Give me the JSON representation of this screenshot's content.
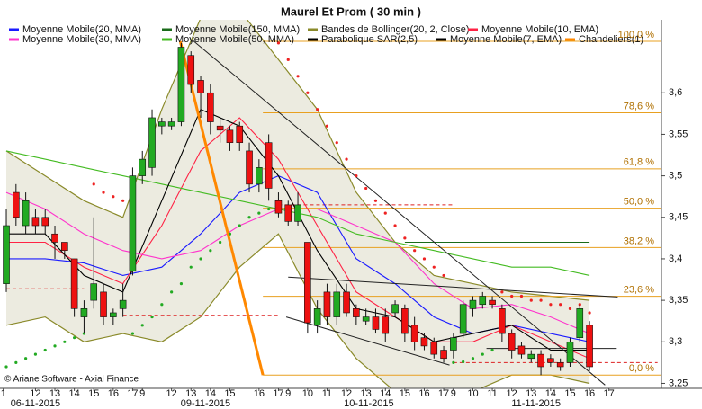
{
  "chart_data": {
    "type": "candlestick",
    "title": "Maurel Et Prom  ( 30 min )",
    "copyright": "© Ariane Software - Axial Finance",
    "xlim": [
      -0.65,
      67.4
    ],
    "ylim": [
      3.244,
      3.688
    ],
    "yticks": [
      {
        "value": 3.25,
        "label": "3,25"
      },
      {
        "value": 3.3,
        "label": "3,3"
      },
      {
        "value": 3.35,
        "label": "3,35"
      },
      {
        "value": 3.4,
        "label": "3,4"
      },
      {
        "value": 3.45,
        "label": "3,45"
      },
      {
        "value": 3.5,
        "label": "3,5"
      },
      {
        "value": 3.55,
        "label": "3,55"
      },
      {
        "value": 3.6,
        "label": "3,6"
      }
    ],
    "xticks": [
      {
        "value": -0.3,
        "label": "1"
      },
      {
        "value": 3,
        "label": "12"
      },
      {
        "value": 5,
        "label": "13"
      },
      {
        "value": 7,
        "label": "14"
      },
      {
        "value": 9,
        "label": "15"
      },
      {
        "value": 11,
        "label": "16"
      },
      {
        "value": 13,
        "label": "17"
      },
      {
        "value": 14,
        "label": "9"
      },
      {
        "value": 17,
        "label": "12"
      },
      {
        "value": 19,
        "label": "13"
      },
      {
        "value": 21,
        "label": "14"
      },
      {
        "value": 23,
        "label": "15"
      },
      {
        "value": 26,
        "label": "16"
      },
      {
        "value": 28,
        "label": "17"
      },
      {
        "value": 29,
        "label": "9"
      },
      {
        "value": 31,
        "label": "10"
      },
      {
        "value": 33,
        "label": "11"
      },
      {
        "value": 35,
        "label": "12"
      },
      {
        "value": 37,
        "label": "13"
      },
      {
        "value": 39,
        "label": "14"
      },
      {
        "value": 41,
        "label": "15"
      },
      {
        "value": 43,
        "label": "16"
      },
      {
        "value": 45,
        "label": "17"
      },
      {
        "value": 46,
        "label": "9"
      },
      {
        "value": 48,
        "label": "10"
      },
      {
        "value": 50,
        "label": "11"
      },
      {
        "value": 52,
        "label": "12"
      },
      {
        "value": 54,
        "label": "13"
      },
      {
        "value": 56,
        "label": "14"
      },
      {
        "value": 58,
        "label": "15"
      },
      {
        "value": 60,
        "label": "16"
      },
      {
        "value": 62,
        "label": "17"
      }
    ],
    "date_ticks": [
      {
        "value": 3,
        "label": "06-11-2015"
      },
      {
        "value": 20.5,
        "label": "09-11-2015"
      },
      {
        "value": 37.3,
        "label": "10-11-2015"
      },
      {
        "value": 54.5,
        "label": "11-11-2015"
      }
    ],
    "series": [
      {
        "name": "Moyenne Mobile(20, MMA)",
        "color": "#1a1aff",
        "kind": "line",
        "x": [
          0,
          4,
          8,
          12,
          16,
          20,
          24,
          28,
          32,
          36,
          40,
          44,
          48,
          52,
          56,
          60
        ],
        "values": [
          3.4,
          3.4,
          3.395,
          3.38,
          3.39,
          3.43,
          3.48,
          3.5,
          3.48,
          3.4,
          3.37,
          3.33,
          3.31,
          3.32,
          3.31,
          3.3
        ]
      },
      {
        "name": "Moyenne Mobile(150, MMA)",
        "color": "#1a6b1a",
        "kind": "line",
        "x": [
          41,
          60
        ],
        "values": [
          3.42,
          3.42
        ]
      },
      {
        "name": "Bandes de Bollinger(20, 2, Close)",
        "color": "#8a8a2a",
        "kind": "band",
        "fill": "#ecebe0",
        "x": [
          0,
          4,
          8,
          12,
          16,
          20,
          24,
          28,
          32,
          36,
          40,
          44,
          48,
          52,
          56,
          60
        ],
        "upper": [
          3.53,
          3.5,
          3.47,
          3.45,
          3.58,
          3.69,
          3.7,
          3.64,
          3.58,
          3.48,
          3.42,
          3.38,
          3.37,
          3.36,
          3.355,
          3.35
        ],
        "lower": [
          3.32,
          3.33,
          3.3,
          3.31,
          3.3,
          3.33,
          3.39,
          3.43,
          3.34,
          3.28,
          3.24,
          3.23,
          3.24,
          3.26,
          3.26,
          3.25
        ]
      },
      {
        "name": "Moyenne Mobile(10, EMA)",
        "color": "#ff2244",
        "kind": "line",
        "x": [
          0,
          4,
          8,
          12,
          16,
          20,
          24,
          28,
          32,
          36,
          40,
          44,
          48,
          52,
          56,
          60
        ],
        "values": [
          3.42,
          3.42,
          3.39,
          3.37,
          3.44,
          3.53,
          3.57,
          3.52,
          3.44,
          3.36,
          3.33,
          3.3,
          3.3,
          3.32,
          3.3,
          3.28
        ]
      },
      {
        "name": "Moyenne Mobile(30, MMA)",
        "color": "#ff33cc",
        "kind": "line",
        "x": [
          0,
          4,
          8,
          12,
          16,
          20,
          24,
          28,
          32,
          36,
          40,
          44,
          48,
          52,
          56,
          60
        ],
        "values": [
          3.48,
          3.46,
          3.43,
          3.41,
          3.4,
          3.41,
          3.44,
          3.46,
          3.46,
          3.44,
          3.42,
          3.37,
          3.34,
          3.345,
          3.33,
          3.31
        ]
      },
      {
        "name": "Moyenne Mobile(50, MMA)",
        "color": "#44bb22",
        "kind": "line",
        "x": [
          0,
          4,
          8,
          12,
          16,
          20,
          24,
          28,
          32,
          36,
          40,
          44,
          48,
          52,
          56,
          60
        ],
        "values": [
          3.53,
          3.52,
          3.51,
          3.5,
          3.49,
          3.48,
          3.47,
          3.46,
          3.45,
          3.43,
          3.42,
          3.41,
          3.4,
          3.39,
          3.39,
          3.38
        ]
      },
      {
        "name": "Parabolique SAR(2,5)",
        "color": "#000000",
        "kind": "sar",
        "up_color": "#22aa22",
        "down_color": "#ee2222",
        "values": [
          3.27,
          3.275,
          3.28,
          3.285,
          3.29,
          3.295,
          3.3,
          3.305,
          3.31,
          3.49,
          3.48,
          3.475,
          3.47,
          3.31,
          3.32,
          3.33,
          3.345,
          3.36,
          3.37,
          3.39,
          3.4,
          3.41,
          3.42,
          3.43,
          3.44,
          3.45,
          3.455,
          3.46,
          3.66,
          3.64,
          3.62,
          3.6,
          3.58,
          3.56,
          3.54,
          3.52,
          3.5,
          3.485,
          3.47,
          3.455,
          3.44,
          3.425,
          3.41,
          3.4,
          3.39,
          3.38,
          3.275,
          3.276,
          3.28,
          3.285,
          3.29,
          3.36,
          3.355,
          3.355,
          3.35,
          3.35,
          3.345,
          3.345,
          3.34,
          3.345,
          3.335
        ]
      },
      {
        "name": "Moyenne Mobile(7, EMA)",
        "color": "#000000",
        "kind": "line",
        "x": [
          0,
          4,
          8,
          12,
          16,
          20,
          24,
          28,
          32,
          36,
          40,
          44,
          48,
          52,
          56,
          60
        ],
        "values": [
          3.43,
          3.43,
          3.38,
          3.36,
          3.47,
          3.58,
          3.56,
          3.5,
          3.41,
          3.34,
          3.33,
          3.3,
          3.31,
          3.32,
          3.29,
          3.29
        ]
      },
      {
        "name": "Chandeliers(1)",
        "color": "#ff8800",
        "kind": "candles",
        "rising_color": "#22aa22",
        "falling_color": "#ee1111",
        "open": [
          3.37,
          3.48,
          3.44,
          3.45,
          3.45,
          3.43,
          3.42,
          3.4,
          3.33,
          3.35,
          3.36,
          3.33,
          3.34,
          3.385,
          3.5,
          3.51,
          3.56,
          3.56,
          3.565,
          3.645,
          3.615,
          3.6,
          3.56,
          3.555,
          3.56,
          3.53,
          3.49,
          3.54,
          3.47,
          3.465,
          3.445,
          3.42,
          3.32,
          3.36,
          3.33,
          3.36,
          3.34,
          3.325,
          3.33,
          3.33,
          3.335,
          3.34,
          3.32,
          3.305,
          3.3,
          3.29,
          3.29,
          3.31,
          3.34,
          3.345,
          3.35,
          3.34,
          3.31,
          3.295,
          3.28,
          3.285,
          3.28,
          3.275,
          3.275,
          3.305,
          3.32
        ],
        "high": [
          3.46,
          3.49,
          3.48,
          3.46,
          3.46,
          3.44,
          3.42,
          3.4,
          3.35,
          3.45,
          3.37,
          3.34,
          3.37,
          3.51,
          3.53,
          3.58,
          3.57,
          3.57,
          3.66,
          3.65,
          3.62,
          3.61,
          3.57,
          3.56,
          3.565,
          3.54,
          3.52,
          3.55,
          3.48,
          3.47,
          3.48,
          3.42,
          3.35,
          3.37,
          3.37,
          3.37,
          3.345,
          3.34,
          3.34,
          3.34,
          3.35,
          3.345,
          3.33,
          3.31,
          3.305,
          3.295,
          3.31,
          3.35,
          3.355,
          3.36,
          3.355,
          3.345,
          3.315,
          3.3,
          3.29,
          3.29,
          3.285,
          3.28,
          3.305,
          3.345,
          3.325
        ],
        "low": [
          3.36,
          3.44,
          3.43,
          3.43,
          3.43,
          3.4,
          3.4,
          3.33,
          3.31,
          3.34,
          3.32,
          3.32,
          3.33,
          3.38,
          3.49,
          3.5,
          3.55,
          3.555,
          3.56,
          3.6,
          3.57,
          3.55,
          3.54,
          3.53,
          3.53,
          3.48,
          3.48,
          3.47,
          3.45,
          3.44,
          3.44,
          3.31,
          3.31,
          3.32,
          3.32,
          3.33,
          3.32,
          3.32,
          3.31,
          3.3,
          3.33,
          3.3,
          3.29,
          3.29,
          3.28,
          3.275,
          3.28,
          3.305,
          3.33,
          3.34,
          3.34,
          3.3,
          3.28,
          3.28,
          3.275,
          3.26,
          3.27,
          3.265,
          3.27,
          3.3,
          3.265
        ],
        "close": [
          3.44,
          3.45,
          3.47,
          3.44,
          3.44,
          3.42,
          3.41,
          3.34,
          3.34,
          3.37,
          3.33,
          3.335,
          3.35,
          3.5,
          3.52,
          3.57,
          3.565,
          3.565,
          3.655,
          3.61,
          3.6,
          3.565,
          3.555,
          3.54,
          3.54,
          3.49,
          3.51,
          3.485,
          3.455,
          3.445,
          3.465,
          3.323,
          3.34,
          3.33,
          3.36,
          3.335,
          3.33,
          3.33,
          3.315,
          3.31,
          3.345,
          3.31,
          3.3,
          3.295,
          3.285,
          3.28,
          3.305,
          3.345,
          3.35,
          3.355,
          3.345,
          3.31,
          3.29,
          3.285,
          3.285,
          3.27,
          3.275,
          3.27,
          3.3,
          3.34,
          3.27
        ]
      }
    ],
    "retracement": {
      "color": "#ff8800",
      "line_color": "#e8a020",
      "from": [
        17.9,
        3.662
      ],
      "to": [
        26.4,
        3.26
      ],
      "levels": [
        {
          "value": 100,
          "label": "100,0 %"
        },
        {
          "value": 78.6,
          "label": "78,6 %"
        },
        {
          "value": 61.8,
          "label": "61,8 %"
        },
        {
          "value": 50,
          "label": "50,0 %"
        },
        {
          "value": 38.2,
          "label": "38,2 %"
        },
        {
          "value": 23.6,
          "label": "23,6 %"
        },
        {
          "value": 0,
          "label": "0,0 %"
        }
      ]
    },
    "trendlines": [
      {
        "color": "#222222",
        "points": [
          [
            19.2,
            3.663
          ],
          [
            61.6,
            3.248
          ]
        ]
      },
      {
        "color": "#222222",
        "points": [
          [
            29,
            3.378
          ],
          [
            62.9,
            3.354
          ]
        ]
      },
      {
        "color": "#222222",
        "points": [
          [
            28.8,
            3.33
          ],
          [
            45.6,
            3.272
          ]
        ]
      },
      {
        "color": "#222222",
        "points": [
          [
            49.4,
            3.292
          ],
          [
            62.8,
            3.292
          ]
        ]
      }
    ],
    "reference_lines": {
      "color": "#dd2222",
      "lines": [
        {
          "from": 0,
          "to": 8,
          "value": 3.364
        },
        {
          "from": 12,
          "to": 28,
          "value": 3.332
        },
        {
          "from": 28,
          "to": 46,
          "value": 3.465
        },
        {
          "from": 46,
          "to": 67,
          "value": 3.275
        }
      ]
    }
  }
}
